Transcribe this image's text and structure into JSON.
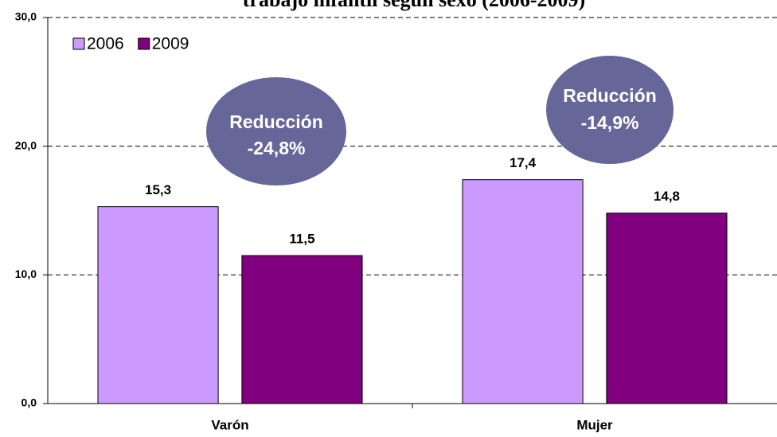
{
  "chart_data": {
    "type": "bar",
    "title": "trabajo infantil según sexo (2006-2009)",
    "categories": [
      "Varón",
      "Mujer"
    ],
    "series": [
      {
        "name": "2006",
        "color": "#cc99ff",
        "values": [
          15.3,
          17.4
        ],
        "value_labels": [
          "15,3",
          "17,4"
        ]
      },
      {
        "name": "2009",
        "color": "#800080",
        "values": [
          11.5,
          14.8
        ],
        "value_labels": [
          "11,5",
          "14,8"
        ]
      }
    ],
    "ylim": [
      0,
      30
    ],
    "yticks": [
      {
        "value": 0,
        "label": "0,0"
      },
      {
        "value": 10,
        "label": "10,0"
      },
      {
        "value": 20,
        "label": "20,0"
      },
      {
        "value": 30,
        "label": "30,0"
      }
    ],
    "grid": true,
    "legend": "top-left",
    "annotations": [
      {
        "lines": [
          "Reducción",
          "-24,8%"
        ]
      },
      {
        "lines": [
          "Reducción",
          "-14,9%"
        ]
      }
    ]
  }
}
